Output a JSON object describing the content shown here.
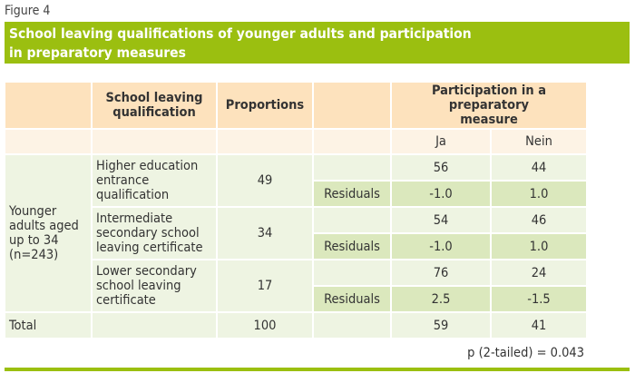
{
  "figure_label": "Figure 4",
  "title_line1": "School leaving qualifications of younger adults and participation",
  "title_line2": "in preparatory measures",
  "headers": {
    "qualification": "School leaving qualification",
    "proportions": "Proportions",
    "participation": "Participation in a preparatory measure",
    "ja": "Ja",
    "nein": "Nein"
  },
  "group_label": "Younger adults aged up to 34 (n=243)",
  "rows": [
    {
      "qualification": "Higher education entrance qualification",
      "proportion": "49",
      "ja": "56",
      "nein": "44",
      "residual_label": "Residuals",
      "res_ja": "-1.0",
      "res_nein": "1.0"
    },
    {
      "qualification": "Intermediate secondary school leaving certificate",
      "proportion": "34",
      "ja": "54",
      "nein": "46",
      "residual_label": "Residuals",
      "res_ja": "-1.0",
      "res_nein": "1.0"
    },
    {
      "qualification": "Lower secondary school leaving certificate",
      "proportion": "17",
      "ja": "76",
      "nein": "24",
      "residual_label": "Residuals",
      "res_ja": "2.5",
      "res_nein": "-1.5"
    }
  ],
  "total": {
    "label": "Total",
    "proportion": "100",
    "ja": "59",
    "nein": "41"
  },
  "p_value": "p (2-tailed) = 0.043"
}
